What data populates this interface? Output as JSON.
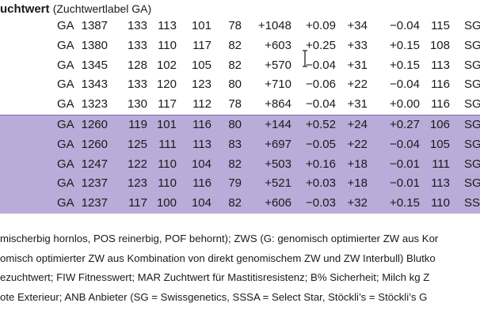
{
  "title": {
    "bold": "uchtwert",
    "rest": "(Zuchtwertlabel GA)"
  },
  "table": {
    "rows": [
      {
        "c": [
          "GA",
          "1387",
          "133",
          "113",
          "101",
          "78",
          "+1048",
          "+0.09",
          "+34",
          "−0.04",
          "115",
          "SG"
        ],
        "hl": false
      },
      {
        "c": [
          "GA",
          "1380",
          "133",
          "110",
          "117",
          "82",
          "+603",
          "+0.25",
          "+33",
          "+0.15",
          "108",
          "SG"
        ],
        "hl": false
      },
      {
        "c": [
          "GA",
          "1345",
          "128",
          "102",
          "105",
          "82",
          "+570",
          "−0.04",
          "+31",
          "+0.15",
          "113",
          "SG"
        ],
        "hl": false
      },
      {
        "c": [
          "GA",
          "1343",
          "133",
          "120",
          "123",
          "80",
          "+710",
          "−0.06",
          "+22",
          "−0.04",
          "116",
          "SG"
        ],
        "hl": false
      },
      {
        "c": [
          "GA",
          "1323",
          "130",
          "117",
          "112",
          "78",
          "+864",
          "−0.04",
          "+31",
          "+0.00",
          "116",
          "SG"
        ],
        "hl": false
      },
      {
        "c": [
          "GA",
          "1260",
          "119",
          "101",
          "116",
          "80",
          "+144",
          "+0.52",
          "+24",
          "+0.27",
          "106",
          "SG"
        ],
        "hl": true
      },
      {
        "c": [
          "GA",
          "1260",
          "125",
          "111",
          "113",
          "83",
          "+697",
          "−0.05",
          "+22",
          "−0.04",
          "105",
          "SG"
        ],
        "hl": true
      },
      {
        "c": [
          "GA",
          "1247",
          "122",
          "110",
          "104",
          "82",
          "+503",
          "+0.16",
          "+18",
          "−0.01",
          "111",
          "SG"
        ],
        "hl": true
      },
      {
        "c": [
          "GA",
          "1237",
          "123",
          "110",
          "116",
          "79",
          "+521",
          "+0.03",
          "+18",
          "−0.01",
          "113",
          "SG"
        ],
        "hl": true
      },
      {
        "c": [
          "GA",
          "1237",
          "117",
          "100",
          "104",
          "82",
          "+606",
          "−0.03",
          "+32",
          "+0.15",
          "110",
          "SS"
        ],
        "hl": true
      }
    ]
  },
  "notes": [
    "mischerbig hornlos, POS reinerbig, POF behornt); ZWS (G: genomisch optimierter ZW aus Kor",
    "omisch optimierter ZW aus Kombination von direkt genomischem ZW und ZW Interbull) Blutko",
    "ezuchtwert; FIW Fitnesswert; MAR Zuchtwert für Mastitisresistenz; B% Sicherheit; Milch kg Z",
    "ote Exterieur; ANB Anbieter (SG = Swissgenetics, SSSA = Select Star, Stöckli’s = Stöckli’s G"
  ]
}
